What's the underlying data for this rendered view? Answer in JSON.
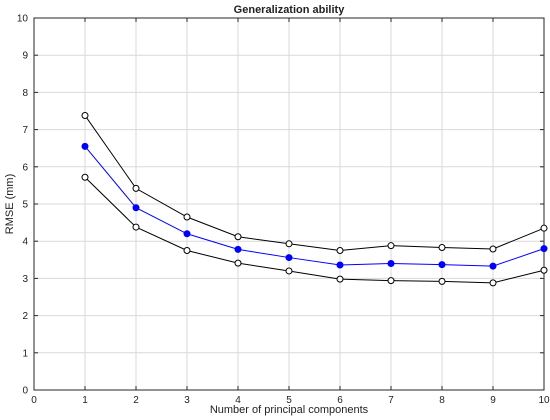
{
  "chart_data": {
    "type": "line",
    "title": "Generalization ability",
    "xlabel": "Number of principal components",
    "ylabel": "RMSE (mm)",
    "xlim": [
      0,
      10
    ],
    "ylim": [
      0,
      10
    ],
    "xticks": [
      0,
      1,
      2,
      3,
      4,
      5,
      6,
      7,
      8,
      9,
      10
    ],
    "yticks": [
      0,
      1,
      2,
      3,
      4,
      5,
      6,
      7,
      8,
      9,
      10
    ],
    "grid": true,
    "x": [
      1,
      2,
      3,
      4,
      5,
      6,
      7,
      8,
      9,
      10
    ],
    "series": [
      {
        "values": [
          7.38,
          5.42,
          4.65,
          4.12,
          3.93,
          3.75,
          3.88,
          3.83,
          3.79,
          4.35
        ],
        "color": "#000000",
        "marker": "open-circle"
      },
      {
        "values": [
          6.55,
          4.9,
          4.2,
          3.78,
          3.56,
          3.36,
          3.4,
          3.37,
          3.33,
          3.8
        ],
        "color": "#0000ff",
        "marker": "filled-circle"
      },
      {
        "values": [
          5.72,
          4.38,
          3.75,
          3.41,
          3.2,
          2.98,
          2.94,
          2.92,
          2.88,
          3.22
        ],
        "color": "#000000",
        "marker": "open-circle"
      }
    ]
  }
}
